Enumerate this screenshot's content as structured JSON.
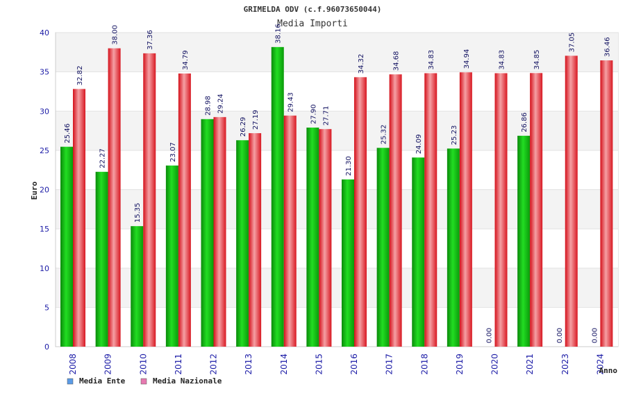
{
  "chart_data": {
    "type": "bar",
    "title": "GRIMELDA ODV (c.f.96073650044)",
    "subtitle": "Media Importi",
    "ylabel": "Euro",
    "xlabel": "Anno",
    "ylim": [
      0,
      40
    ],
    "yticks": [
      0,
      5,
      10,
      15,
      20,
      25,
      30,
      35,
      40
    ],
    "categories": [
      "2008",
      "2009",
      "2010",
      "2011",
      "2012",
      "2013",
      "2014",
      "2015",
      "2016",
      "2017",
      "2018",
      "2019",
      "2020",
      "2021",
      "2023",
      "2024"
    ],
    "series": [
      {
        "name": "Media Ente",
        "values": [
          25.46,
          22.27,
          15.35,
          23.07,
          28.98,
          26.29,
          38.16,
          27.9,
          21.3,
          25.32,
          24.09,
          25.23,
          0.0,
          26.86,
          0.0,
          0.0
        ],
        "labels": [
          "25.46",
          "22.27",
          "15.35",
          "23.07",
          "28.98",
          "26.29",
          "38.16",
          "27.90",
          "21.30",
          "25.32",
          "24.09",
          "25.23",
          "0.00",
          "26.86",
          "0.00",
          "0.00"
        ]
      },
      {
        "name": "Media Nazionale",
        "values": [
          32.82,
          38.0,
          37.36,
          34.79,
          29.24,
          27.19,
          29.43,
          27.71,
          34.32,
          34.68,
          34.83,
          34.94,
          34.83,
          34.85,
          37.05,
          36.46
        ],
        "labels": [
          "32.82",
          "38.00",
          "37.36",
          "34.79",
          "29.24",
          "27.19",
          "29.43",
          "27.71",
          "34.32",
          "34.68",
          "34.83",
          "34.94",
          "34.83",
          "34.85",
          "37.05",
          "36.46"
        ]
      }
    ],
    "legend": [
      {
        "name": "Media Ente",
        "color": "#5b9be6"
      },
      {
        "name": "Media Nazionale",
        "color": "#e67ab0"
      }
    ],
    "colors": {
      "ente": "#1ec81e",
      "nazionale": "#e8202a"
    },
    "grid": true,
    "legend_position": "bottom-left"
  }
}
